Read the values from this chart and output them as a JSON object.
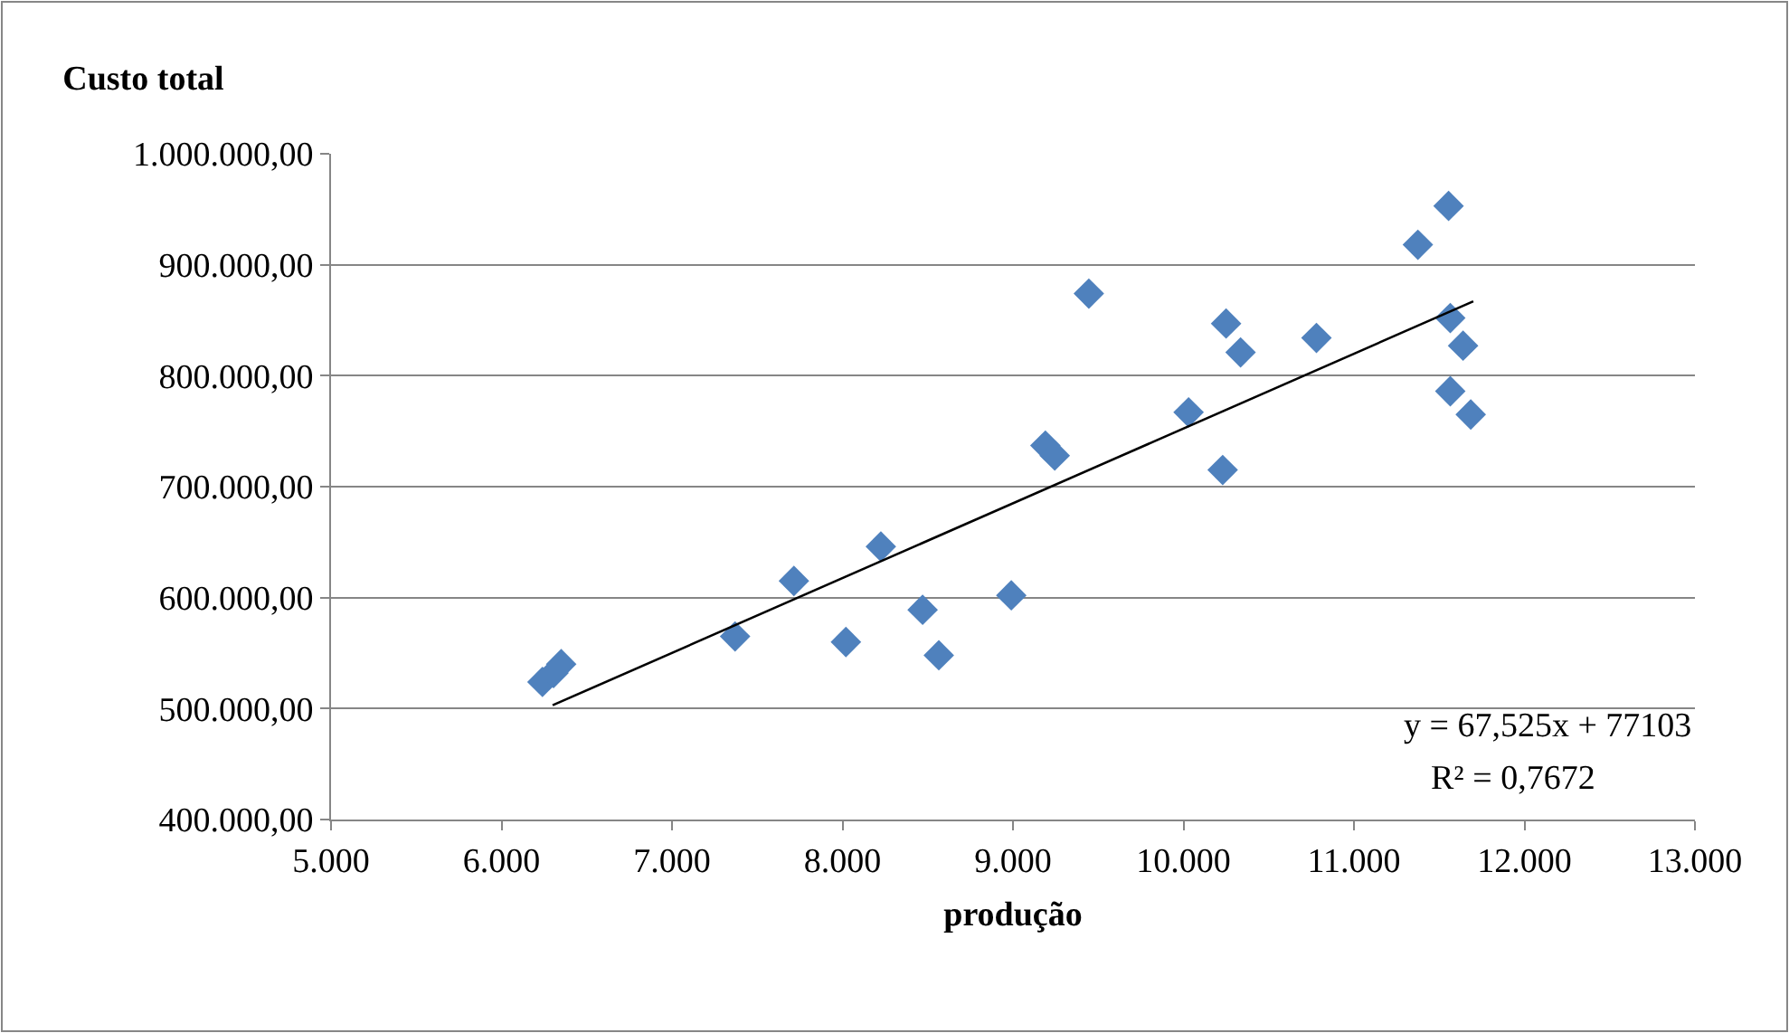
{
  "chart_data": {
    "type": "scatter",
    "title": "Custo total",
    "xlabel": "produção",
    "series": [
      {
        "color": "#4f81bd",
        "marker": "diamond",
        "x": [
          6240,
          6305,
          6350,
          7370,
          7715,
          8020,
          8225,
          8470,
          8565,
          8990,
          9190,
          9245,
          9445,
          10030,
          10230,
          10250,
          10335,
          10780,
          11375,
          11555,
          11565,
          11640,
          11565,
          11685
        ],
        "values": [
          524000,
          532000,
          540000,
          565000,
          615000,
          560000,
          646000,
          589000,
          548000,
          602000,
          737000,
          728000,
          874000,
          767000,
          715000,
          847000,
          821000,
          834000,
          918000,
          953000,
          852000,
          827000,
          786000,
          765000
        ]
      },
      {
        "type": "line",
        "color": "#000000",
        "marker": "none",
        "line_style": "solid",
        "x": [
          6300,
          11700
        ],
        "values": [
          503000,
          867000
        ]
      }
    ],
    "xlim": [
      5000,
      13000
    ],
    "xticks": [
      {
        "value": 5000,
        "label": "5.000"
      },
      {
        "value": 6000,
        "label": "6.000"
      },
      {
        "value": 7000,
        "label": "7.000"
      },
      {
        "value": 8000,
        "label": "8.000"
      },
      {
        "value": 9000,
        "label": "9.000"
      },
      {
        "value": 10000,
        "label": "10.000"
      },
      {
        "value": 11000,
        "label": "11.000"
      },
      {
        "value": 12000,
        "label": "12.000"
      },
      {
        "value": 13000,
        "label": "13.000"
      }
    ],
    "ylim": [
      400000,
      1000000
    ],
    "yticks": [
      {
        "value": 400000,
        "label": "400.000,00"
      },
      {
        "value": 500000,
        "label": "500.000,00"
      },
      {
        "value": 600000,
        "label": "600.000,00"
      },
      {
        "value": 700000,
        "label": "700.000,00"
      },
      {
        "value": 800000,
        "label": "800.000,00"
      },
      {
        "value": 900000,
        "label": "900.000,00"
      },
      {
        "value": 1000000,
        "label": "1.000.000,00"
      }
    ],
    "grid": "y",
    "legend": false,
    "annotations": [
      "y = 67,525x + 77103",
      "R² = 0,7672"
    ]
  }
}
